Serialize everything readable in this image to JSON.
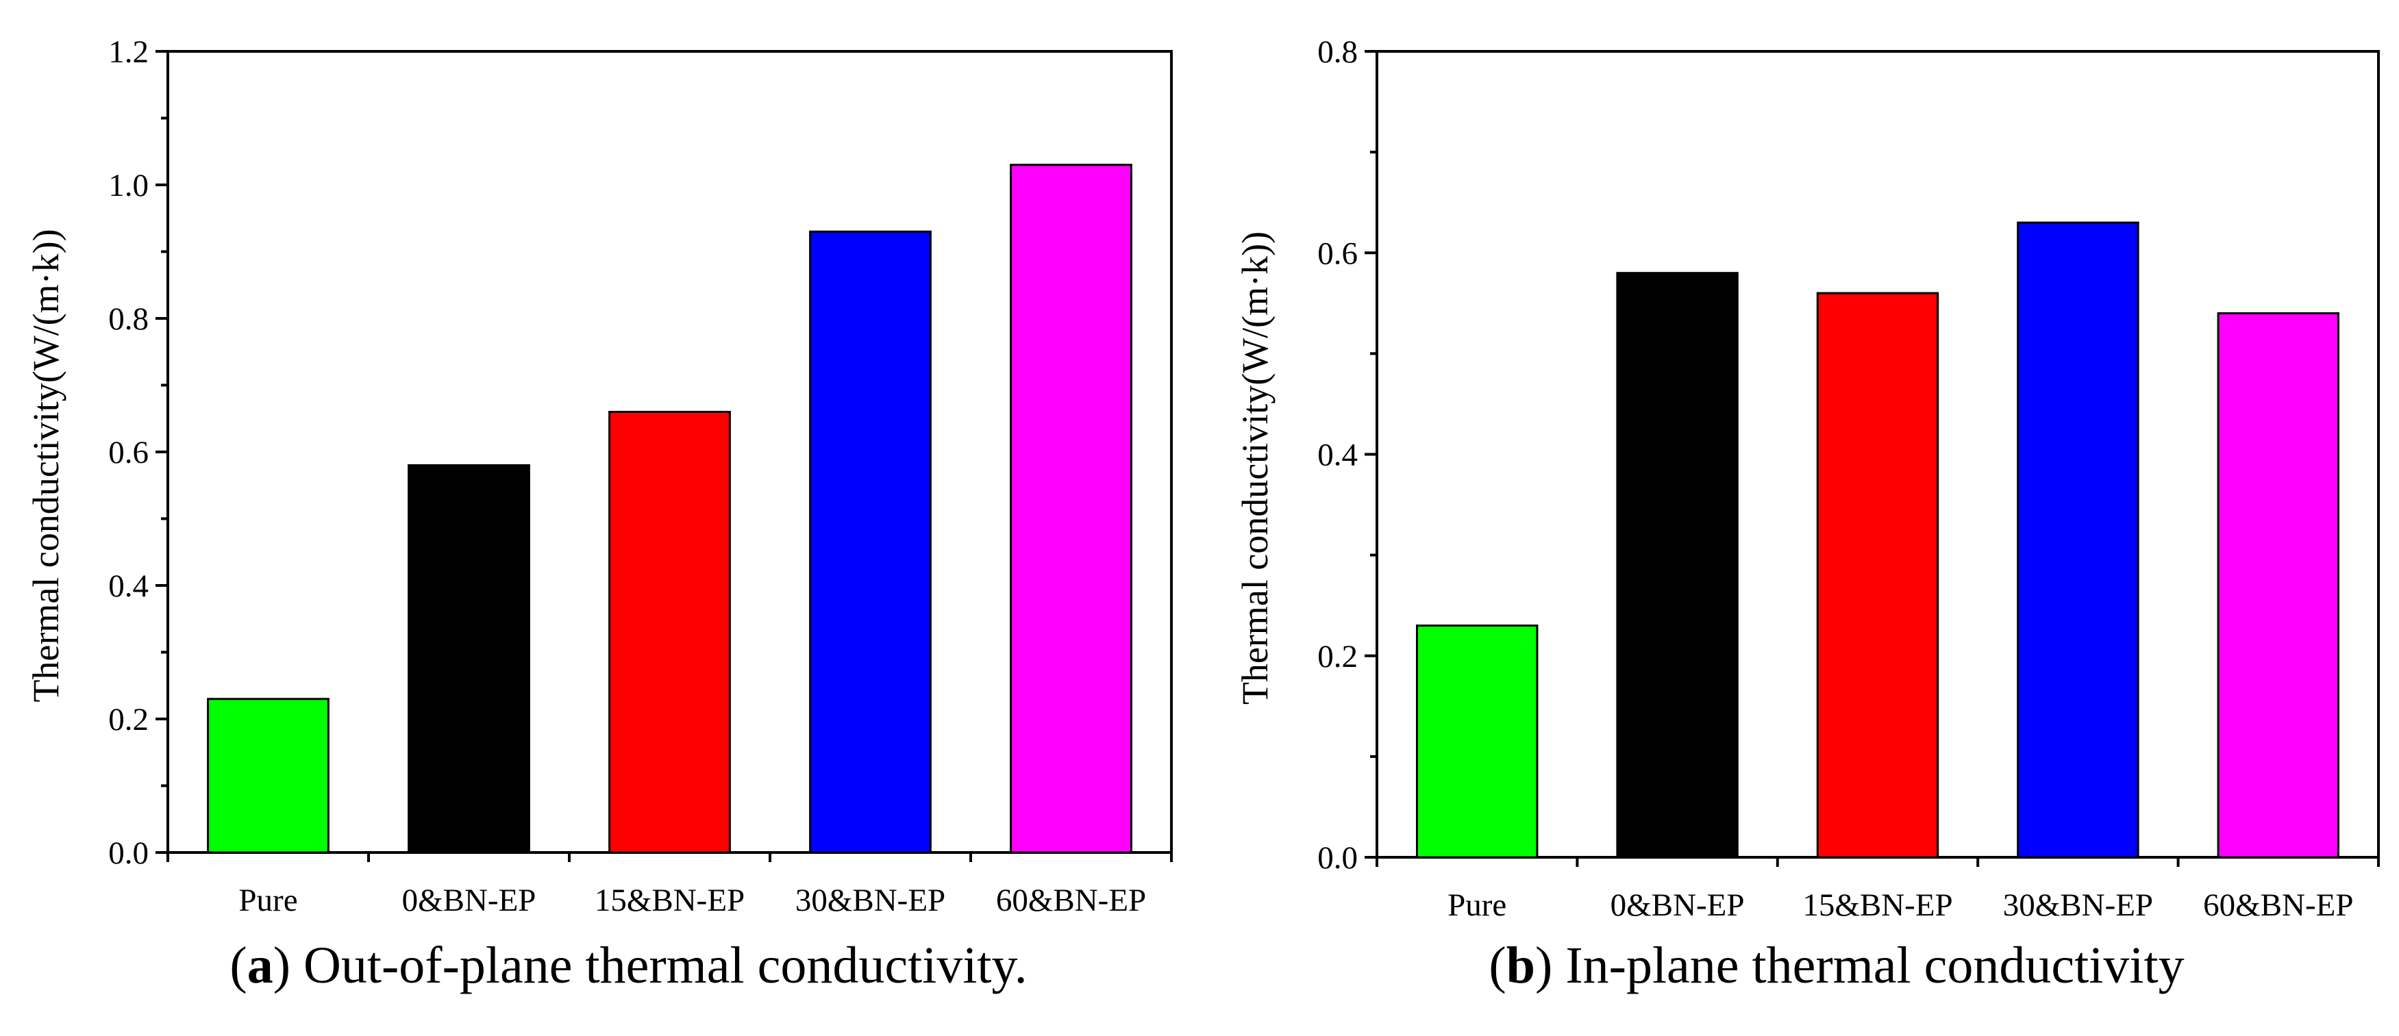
{
  "chart_data": [
    {
      "type": "bar",
      "caption_letter": "a",
      "caption_text": " Out-of-plane thermal conductivity.",
      "ylabel": "Thermal conductivity(W/(m·k))",
      "xlabel": "",
      "categories": [
        "Pure",
        "0&BN-EP",
        "15&BN-EP",
        "30&BN-EP",
        "60&BN-EP"
      ],
      "values": [
        0.23,
        0.58,
        0.66,
        0.93,
        1.03
      ],
      "bar_colors": [
        "#00ff00",
        "#000000",
        "#ff0000",
        "#0000ff",
        "#ff00ff"
      ],
      "ylim": [
        0,
        1.2
      ],
      "yticks": [
        "0.0",
        "0.2",
        "0.4",
        "0.6",
        "0.8",
        "1.0",
        "1.2"
      ],
      "grid": false,
      "legend": "none"
    },
    {
      "type": "bar",
      "caption_letter": "b",
      "caption_text": " In-plane thermal conductivity",
      "ylabel": "Thermal conductivity(W/(m·k))",
      "xlabel": "",
      "categories": [
        "Pure",
        "0&BN-EP",
        "15&BN-EP",
        "30&BN-EP",
        "60&BN-EP"
      ],
      "values": [
        0.23,
        0.58,
        0.56,
        0.63,
        0.54
      ],
      "bar_colors": [
        "#00ff00",
        "#000000",
        "#ff0000",
        "#0000ff",
        "#ff00ff"
      ],
      "ylim": [
        0,
        0.8
      ],
      "yticks": [
        "0.0",
        "0.2",
        "0.4",
        "0.6",
        "0.8"
      ],
      "grid": false,
      "legend": "none"
    }
  ]
}
